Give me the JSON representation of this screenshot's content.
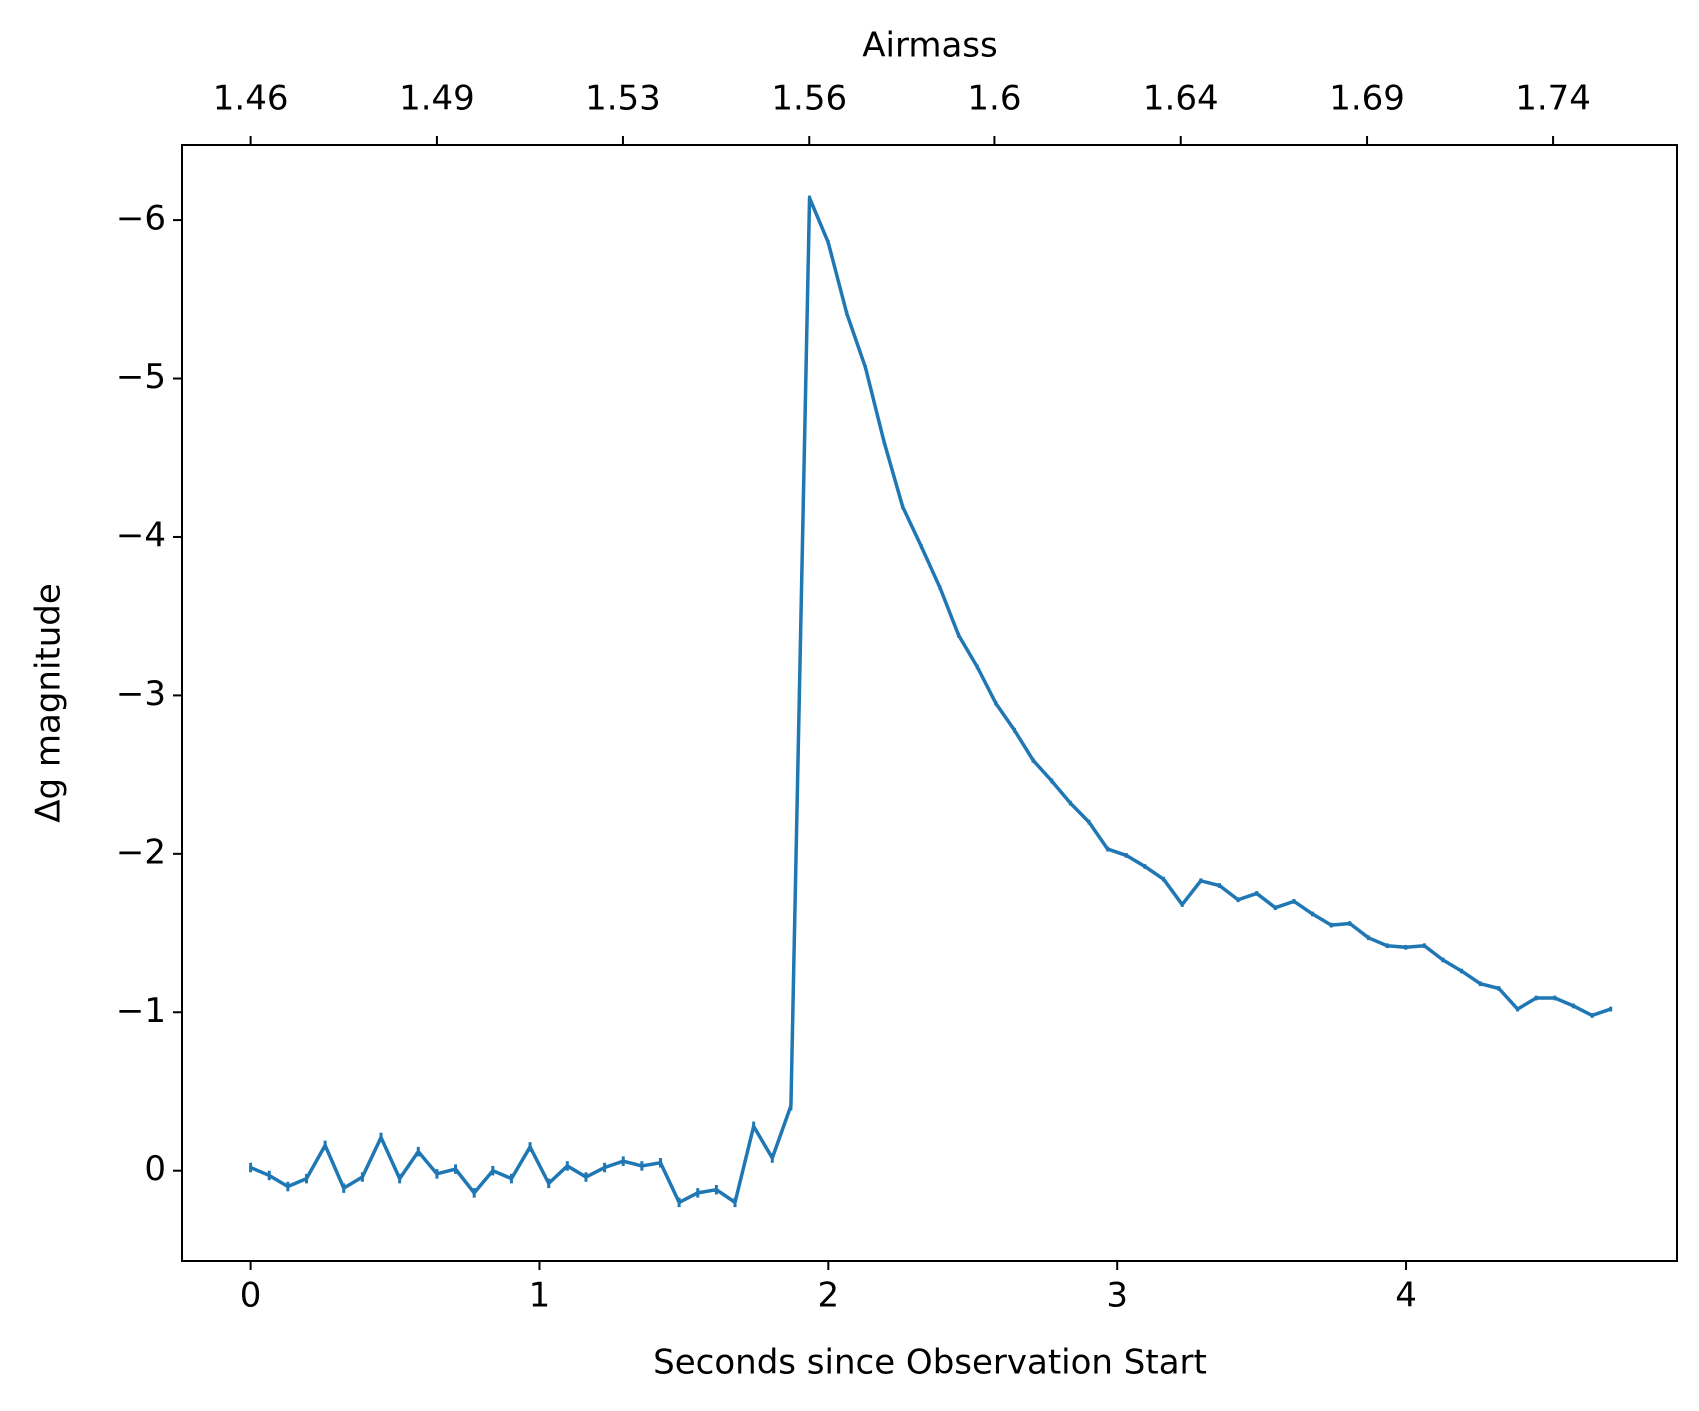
{
  "chart_data": {
    "type": "line",
    "xlabel": "Seconds since Observation Start",
    "ylabel": "Δg magnitude",
    "x2label": "Airmass",
    "color": "#1f77b4",
    "x": [
      0,
      0.0645,
      0.129,
      0.1935,
      0.258,
      0.3225,
      0.387,
      0.4515,
      0.516,
      0.5805,
      0.645,
      0.7095,
      0.774,
      0.8385,
      0.903,
      0.9675,
      1.032,
      1.0965,
      1.161,
      1.2255,
      1.29,
      1.3545,
      1.419,
      1.4835,
      1.548,
      1.6125,
      1.677,
      1.7415,
      1.806,
      1.8705,
      1.935,
      1.9995,
      2.064,
      2.1285,
      2.193,
      2.2575,
      2.322,
      2.3865,
      2.451,
      2.5155,
      2.58,
      2.6445,
      2.709,
      2.7735,
      2.838,
      2.9025,
      2.967,
      3.0315,
      3.096,
      3.1605,
      3.225,
      3.2895,
      3.354,
      3.4185,
      3.483,
      3.5475,
      3.612,
      3.6765,
      3.741,
      3.8055,
      3.87,
      3.9345,
      3.999,
      4.0635,
      4.128,
      4.1925,
      4.257,
      4.3215,
      4.386,
      4.4505,
      4.515,
      4.5795,
      4.644,
      4.7085
    ],
    "values": [
      -0.02,
      0.03,
      0.1,
      0.05,
      -0.16,
      0.11,
      0.04,
      -0.21,
      0.05,
      -0.12,
      0.02,
      -0.01,
      0.14,
      0.0,
      0.05,
      -0.15,
      0.08,
      -0.03,
      0.04,
      -0.02,
      -0.06,
      -0.03,
      -0.05,
      0.2,
      0.14,
      0.12,
      0.2,
      -0.28,
      -0.08,
      -0.41,
      -6.14,
      -5.86,
      -5.41,
      -5.07,
      -4.6,
      -4.19,
      -3.94,
      -3.68,
      -3.38,
      -3.18,
      -2.95,
      -2.78,
      -2.59,
      -2.46,
      -2.32,
      -2.2,
      -2.03,
      -1.99,
      -1.92,
      -1.84,
      -1.68,
      -1.83,
      -1.8,
      -1.71,
      -1.75,
      -1.66,
      -1.7,
      -1.62,
      -1.55,
      -1.56,
      -1.47,
      -1.42,
      -1.41,
      -1.42,
      -1.33,
      -1.26,
      -1.18,
      -1.15,
      -1.02,
      -1.09,
      -1.09,
      -1.04,
      -0.98,
      -1.02
    ],
    "errors": [
      0.03,
      0.03,
      0.03,
      0.03,
      0.03,
      0.03,
      0.03,
      0.03,
      0.03,
      0.03,
      0.03,
      0.03,
      0.03,
      0.03,
      0.03,
      0.03,
      0.03,
      0.03,
      0.03,
      0.03,
      0.03,
      0.03,
      0.03,
      0.03,
      0.03,
      0.03,
      0.03,
      0.03,
      0.03,
      0.03,
      0.015,
      0.015,
      0.015,
      0.015,
      0.015,
      0.015,
      0.015,
      0.015,
      0.015,
      0.015,
      0.015,
      0.015,
      0.015,
      0.015,
      0.015,
      0.015,
      0.015,
      0.015,
      0.015,
      0.015,
      0.015,
      0.015,
      0.015,
      0.015,
      0.015,
      0.015,
      0.015,
      0.015,
      0.015,
      0.015,
      0.015,
      0.015,
      0.015,
      0.015,
      0.015,
      0.015,
      0.015,
      0.015,
      0.015,
      0.015,
      0.015,
      0.015,
      0.015,
      0.015
    ],
    "xlim": [
      -0.2375,
      4.938
    ],
    "ylim": [
      0.57,
      -6.474
    ],
    "xticks": [
      0,
      1,
      2,
      3,
      4
    ],
    "yticks": [
      {
        "value": -6,
        "label": "−6"
      },
      {
        "value": -5,
        "label": "−5"
      },
      {
        "value": -4,
        "label": "−4"
      },
      {
        "value": -3,
        "label": "−3"
      },
      {
        "value": -2,
        "label": "−2"
      },
      {
        "value": -1,
        "label": "−1"
      },
      0
    ],
    "x2ticks": [
      1.46,
      1.49,
      1.53,
      1.56,
      1.6,
      1.64,
      1.69,
      1.74
    ],
    "x2tick_positions": [
      0,
      0.645,
      1.289,
      1.934,
      2.575,
      3.22,
      3.865,
      4.509
    ],
    "grid": false
  }
}
